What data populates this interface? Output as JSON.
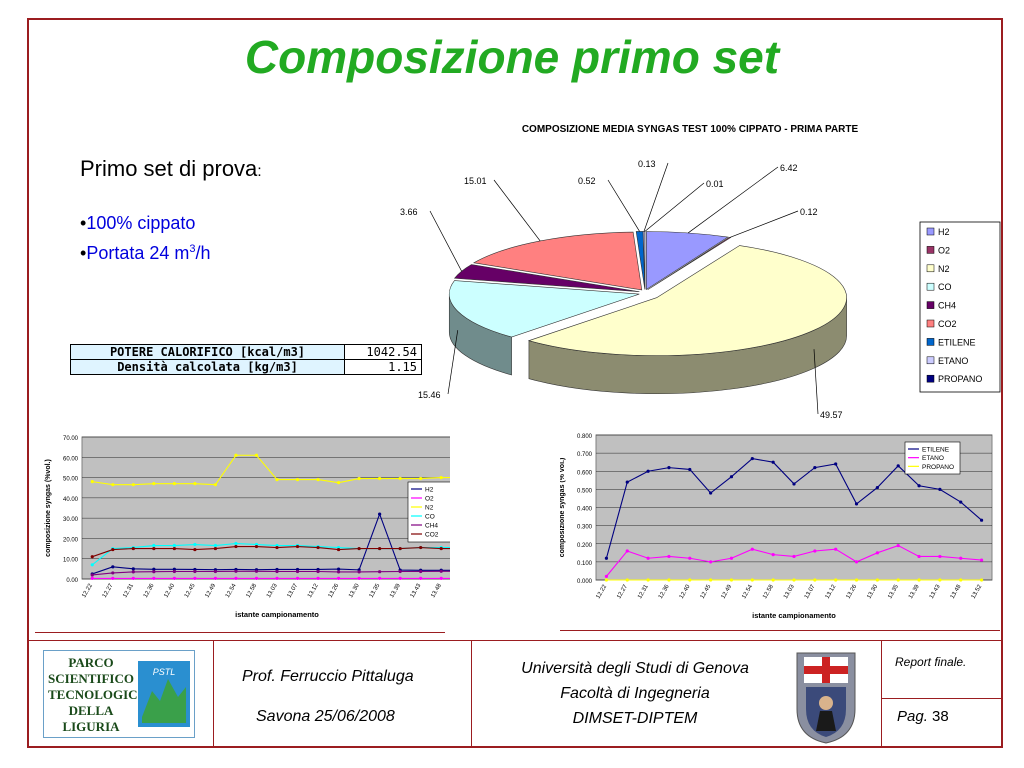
{
  "title": "Composizione primo set",
  "intro": {
    "label": "Primo set di prova",
    "colon": ":"
  },
  "bullets": [
    {
      "marker": "•",
      "text": "100% cippato"
    },
    {
      "marker": "•",
      "text": "Portata 24 m",
      "sup": "3",
      "tail": "/h"
    }
  ],
  "calorific_table": [
    {
      "label": "POTERE CALORIFICO [kcal/m3]",
      "value": "1042.54"
    },
    {
      "label": "Densità calcolata [kg/m3]",
      "value": "1.15"
    }
  ],
  "chart_data": [
    {
      "type": "pie",
      "title": "COMPOSIZIONE MEDIA SYNGAS TEST 100% CIPPATO - PRIMA PARTE",
      "categories": [
        "H2",
        "O2",
        "N2",
        "CO",
        "CH4",
        "CO2",
        "ETILENE",
        "ETANO",
        "PROPANO"
      ],
      "values": [
        6.42,
        0.12,
        49.57,
        15.46,
        3.66,
        15.01,
        0.52,
        0.13,
        0.01
      ],
      "data_labels": [
        "6.42",
        "0.12",
        "49.57",
        "15.46",
        "3.66",
        "15.01",
        "0.52",
        "0.13",
        "0.01"
      ],
      "colors": [
        "#9999ff",
        "#993366",
        "#ffffcc",
        "#ccffff",
        "#660066",
        "#ff8080",
        "#0066cc",
        "#ccccff",
        "#000080"
      ],
      "legend": "right",
      "style": "3d-exploded"
    },
    {
      "type": "line",
      "x": [
        "12.22",
        "12.27",
        "12.31",
        "12.36",
        "12.40",
        "12.45",
        "12.49",
        "12.54",
        "12.58",
        "13.03",
        "13.07",
        "13.12",
        "13.26",
        "13.30",
        "13.35",
        "13.39",
        "13.43",
        "13.48",
        "13.52"
      ],
      "series": [
        {
          "name": "H2",
          "color": "#000080",
          "values": [
            2.5,
            6.0,
            5.0,
            4.8,
            4.8,
            4.7,
            4.6,
            4.7,
            4.6,
            4.7,
            4.7,
            4.7,
            4.9,
            4.5,
            32.0,
            4.4,
            4.3,
            4.3,
            4.3
          ]
        },
        {
          "name": "O2",
          "color": "#ff00ff",
          "values": [
            0.3,
            0.3,
            0.3,
            0.3,
            0.3,
            0.3,
            0.3,
            0.3,
            0.3,
            0.3,
            0.3,
            0.3,
            0.3,
            0.3,
            0.3,
            0.3,
            0.3,
            0.3,
            0.3
          ]
        },
        {
          "name": "N2",
          "color": "#ffff00",
          "values": [
            48.0,
            46.5,
            46.5,
            47.0,
            47.0,
            47.0,
            46.5,
            61.0,
            61.0,
            49.0,
            49.0,
            49.0,
            47.5,
            49.5,
            49.5,
            49.5,
            49.5,
            50.0,
            50.0
          ]
        },
        {
          "name": "CO",
          "color": "#00ffff",
          "values": [
            7.0,
            15.0,
            15.5,
            16.5,
            16.5,
            17.0,
            16.5,
            17.5,
            17.0,
            16.5,
            16.5,
            16.0,
            15.5,
            15.0,
            15.0,
            15.0,
            15.5,
            15.5,
            15.5
          ]
        },
        {
          "name": "CH4",
          "color": "#800080",
          "values": [
            2.0,
            3.0,
            3.5,
            3.6,
            3.7,
            3.7,
            3.7,
            3.8,
            3.8,
            3.7,
            3.7,
            3.7,
            3.5,
            3.5,
            3.6,
            3.7,
            3.7,
            3.8,
            3.8
          ]
        },
        {
          "name": "CO2",
          "color": "#800000",
          "values": [
            11.0,
            14.5,
            15.0,
            15.0,
            15.0,
            14.5,
            15.0,
            16.0,
            16.0,
            15.5,
            16.0,
            15.5,
            14.5,
            15.0,
            15.0,
            15.0,
            15.5,
            15.0,
            15.0
          ]
        }
      ],
      "xlabel": "istante campionamento",
      "ylabel": "composizione syngas (%vol.)",
      "ylim": [
        0,
        70
      ],
      "yticks": [
        "0.00",
        "10.00",
        "20.00",
        "30.00",
        "40.00",
        "50.00",
        "60.00",
        "70.00"
      ],
      "legend": "right",
      "grid": true
    },
    {
      "type": "line",
      "x": [
        "12.22",
        "12.27",
        "12.31",
        "12.36",
        "12.40",
        "12.45",
        "12.49",
        "12.54",
        "12.58",
        "13.03",
        "13.07",
        "13.12",
        "13.26",
        "13.30",
        "13.35",
        "13.39",
        "13.43",
        "13.48",
        "13.52"
      ],
      "series": [
        {
          "name": "ETILENE",
          "color": "#000080",
          "values": [
            0.12,
            0.54,
            0.6,
            0.62,
            0.61,
            0.48,
            0.57,
            0.67,
            0.65,
            0.53,
            0.62,
            0.64,
            0.42,
            0.51,
            0.63,
            0.52,
            0.5,
            0.43,
            0.33
          ]
        },
        {
          "name": "ETANO",
          "color": "#ff00ff",
          "values": [
            0.02,
            0.16,
            0.12,
            0.13,
            0.12,
            0.1,
            0.12,
            0.17,
            0.14,
            0.13,
            0.16,
            0.17,
            0.1,
            0.15,
            0.19,
            0.13,
            0.13,
            0.12,
            0.11
          ]
        },
        {
          "name": "PROPANO",
          "color": "#ffff00",
          "values": [
            0.0,
            0.0,
            0.0,
            0.0,
            0.0,
            0.0,
            0.0,
            0.0,
            0.0,
            0.0,
            0.0,
            0.0,
            0.0,
            0.0,
            0.0,
            0.0,
            0.0,
            0.0,
            0.0
          ]
        }
      ],
      "xlabel": "istante campionamento",
      "ylabel": "composizione syngas (% vol.)",
      "ylim": [
        0,
        0.8
      ],
      "yticks": [
        "0.000",
        "0.100",
        "0.200",
        "0.300",
        "0.400",
        "0.500",
        "0.600",
        "0.700",
        "0.800"
      ],
      "legend": "top-right",
      "grid": true
    }
  ],
  "footer": {
    "logo_lines": [
      "PARCO",
      "SCIENTIFICO",
      "TECNOLOGICO",
      "DELLA LIGURIA"
    ],
    "logo_badge": "PSTL",
    "author": "Prof. Ferruccio Pittaluga",
    "place_date": "Savona 25/06/2008",
    "university": "Università degli Studi di Genova",
    "faculty": "Facoltà di Ingegneria",
    "department": "DIMSET-DIPTEM",
    "report": "Report finale.",
    "page_label": "Pag.",
    "page_number": "38"
  }
}
